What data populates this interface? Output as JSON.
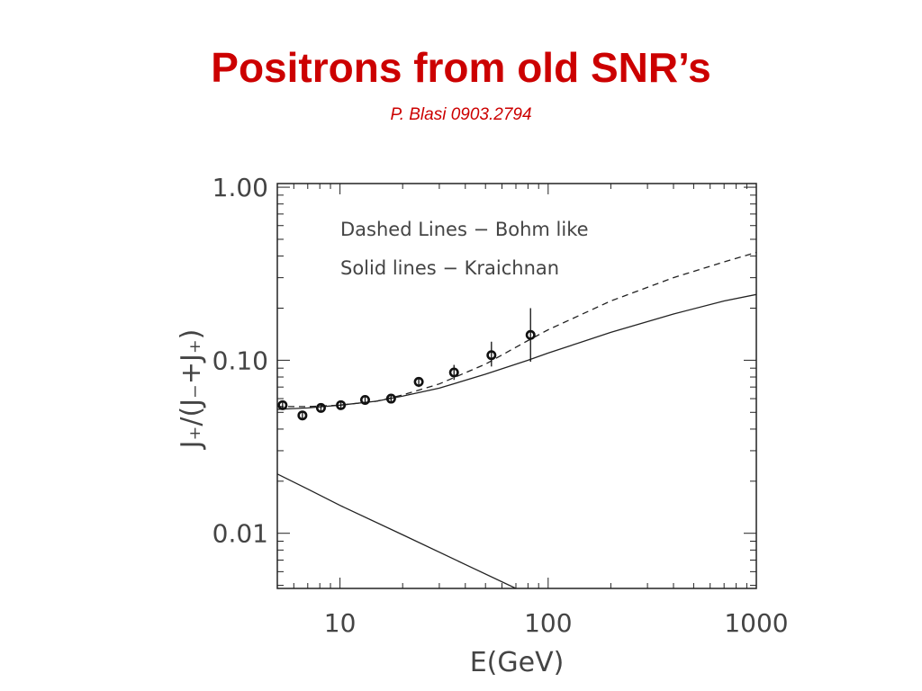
{
  "slide": {
    "title": "Positrons from old SNR’s",
    "subtitle": "P. Blasi 0903.2794"
  },
  "colors": {
    "title": "#cc0000",
    "axes": "#222222",
    "text": "#444444"
  },
  "chart_data": {
    "type": "line",
    "xlabel": "E(GeV)",
    "ylabel": "J₊/(J₋+J₊)",
    "xscale": "log",
    "yscale": "log",
    "xlim": [
      5,
      1000
    ],
    "ylim": [
      0.0048,
      1.05
    ],
    "xticks": [
      {
        "value": 10,
        "label": "10"
      },
      {
        "value": 100,
        "label": "100"
      },
      {
        "value": 1000,
        "label": "1000"
      }
    ],
    "yticks": [
      {
        "value": 0.01,
        "label": "0.01"
      },
      {
        "value": 0.1,
        "label": "0.10"
      },
      {
        "value": 1.0,
        "label": "1.00"
      }
    ],
    "legend": [
      {
        "text": "Dashed Lines − Bohm like"
      },
      {
        "text": "Solid lines − Kraichnan"
      }
    ],
    "series": [
      {
        "style": "dashed",
        "x": [
          5,
          7,
          10,
          15,
          20,
          30,
          50,
          80,
          100,
          200,
          400,
          700,
          1000
        ],
        "y": [
          0.054,
          0.054,
          0.055,
          0.058,
          0.063,
          0.073,
          0.095,
          0.13,
          0.15,
          0.22,
          0.3,
          0.37,
          0.42
        ]
      },
      {
        "style": "solid",
        "x": [
          5,
          7,
          10,
          15,
          20,
          30,
          50,
          80,
          100,
          200,
          400,
          700,
          1000
        ],
        "y": [
          0.052,
          0.053,
          0.055,
          0.058,
          0.062,
          0.069,
          0.083,
          0.1,
          0.11,
          0.145,
          0.185,
          0.22,
          0.24
        ]
      },
      {
        "style": "solid",
        "x": [
          5,
          7,
          10,
          20,
          40,
          70
        ],
        "y": [
          0.022,
          0.018,
          0.0145,
          0.0098,
          0.0066,
          0.0048
        ]
      }
    ],
    "points": [
      {
        "x": 5.3,
        "y": 0.055,
        "ylow": 0.052,
        "yhigh": 0.058
      },
      {
        "x": 6.6,
        "y": 0.048,
        "ylow": 0.045,
        "yhigh": 0.051
      },
      {
        "x": 8.1,
        "y": 0.053,
        "ylow": 0.05,
        "yhigh": 0.056
      },
      {
        "x": 10.1,
        "y": 0.055,
        "ylow": 0.052,
        "yhigh": 0.058
      },
      {
        "x": 13.2,
        "y": 0.059,
        "ylow": 0.056,
        "yhigh": 0.062
      },
      {
        "x": 17.6,
        "y": 0.06,
        "ylow": 0.057,
        "yhigh": 0.063
      },
      {
        "x": 23.9,
        "y": 0.075,
        "ylow": 0.07,
        "yhigh": 0.08
      },
      {
        "x": 35.3,
        "y": 0.085,
        "ylow": 0.077,
        "yhigh": 0.094
      },
      {
        "x": 53.4,
        "y": 0.107,
        "ylow": 0.092,
        "yhigh": 0.128
      },
      {
        "x": 82.3,
        "y": 0.14,
        "ylow": 0.098,
        "yhigh": 0.2
      }
    ]
  }
}
